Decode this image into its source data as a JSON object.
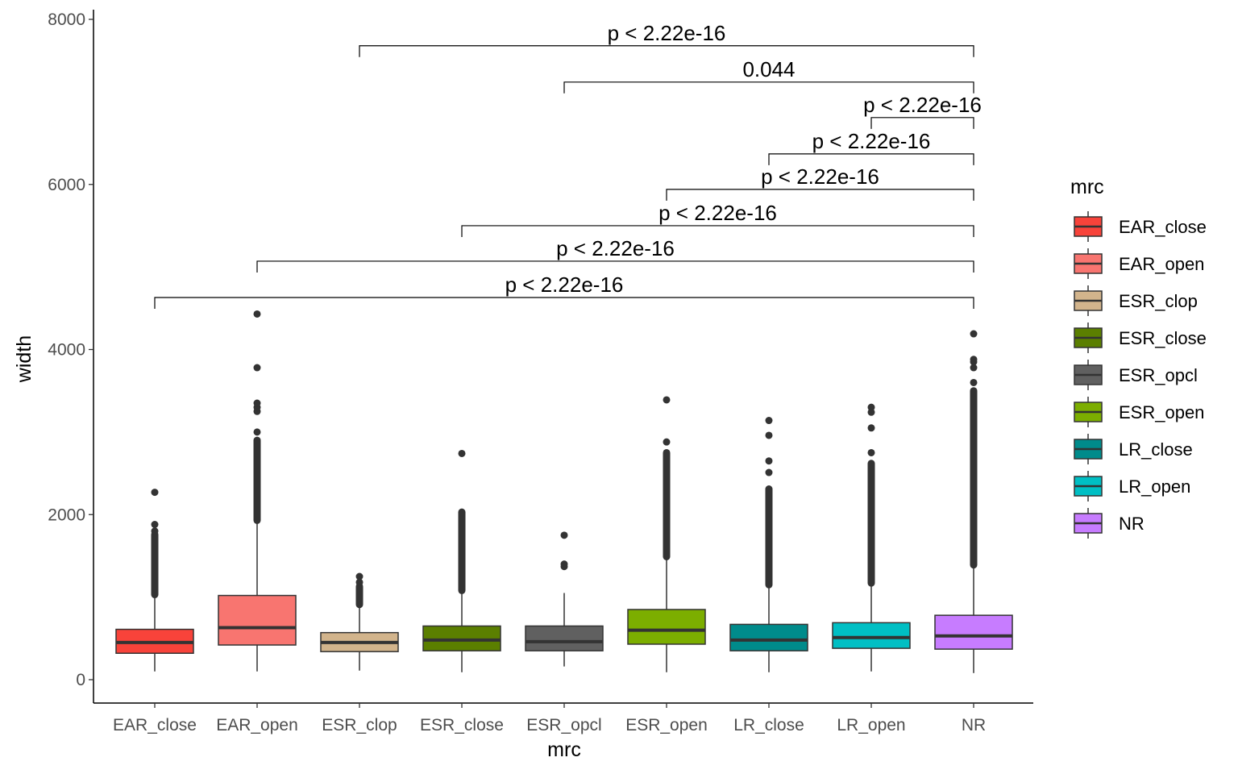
{
  "chart_data": {
    "type": "boxplot",
    "xlabel": "mrc",
    "ylabel": "width",
    "ylim": [
      -300,
      8100
    ],
    "yticks": [
      0,
      2000,
      4000,
      6000,
      8000
    ],
    "ytick_labels": [
      "0",
      "2000",
      "4000",
      "6000",
      "8000"
    ],
    "categories": [
      "EAR_close",
      "EAR_open",
      "ESR_clop",
      "ESR_close",
      "ESR_opcl",
      "ESR_open",
      "LR_close",
      "LR_open",
      "NR"
    ],
    "colors": [
      "#F8433A",
      "#F87570",
      "#D2B48C",
      "#5B7F00",
      "#606060",
      "#7CAE00",
      "#008B8B",
      "#00BFC4",
      "#C77CFF"
    ],
    "boxes": [
      {
        "name": "EAR_close",
        "whisker_low": 100,
        "q1": 320,
        "median": 450,
        "q3": 610,
        "whisker_high": 1020,
        "outlier_dense": [
          1030,
          1760
        ],
        "outliers": [
          1800,
          1880,
          2270
        ]
      },
      {
        "name": "EAR_open",
        "whisker_low": 100,
        "q1": 420,
        "median": 630,
        "q3": 1020,
        "whisker_high": 1920,
        "outlier_dense": [
          1930,
          2900
        ],
        "outliers": [
          3000,
          3250,
          3300,
          3350,
          3780,
          4430
        ]
      },
      {
        "name": "ESR_clop",
        "whisker_low": 110,
        "q1": 340,
        "median": 450,
        "q3": 570,
        "whisker_high": 900,
        "outlier_dense": [
          910,
          1130
        ],
        "outliers": [
          1180,
          1250
        ]
      },
      {
        "name": "ESR_close",
        "whisker_low": 90,
        "q1": 350,
        "median": 480,
        "q3": 650,
        "whisker_high": 1070,
        "outlier_dense": [
          1080,
          2030
        ],
        "outliers": [
          2740
        ]
      },
      {
        "name": "ESR_opcl",
        "whisker_low": 160,
        "q1": 350,
        "median": 460,
        "q3": 650,
        "whisker_high": 1050,
        "outlier_dense": [],
        "outliers": [
          1370,
          1400,
          1750
        ]
      },
      {
        "name": "ESR_open",
        "whisker_low": 90,
        "q1": 430,
        "median": 600,
        "q3": 850,
        "whisker_high": 1480,
        "outlier_dense": [
          1490,
          2750
        ],
        "outliers": [
          2880,
          3390
        ]
      },
      {
        "name": "LR_close",
        "whisker_low": 90,
        "q1": 350,
        "median": 480,
        "q3": 670,
        "whisker_high": 1140,
        "outlier_dense": [
          1150,
          2310
        ],
        "outliers": [
          2510,
          2650,
          2960,
          3140
        ]
      },
      {
        "name": "LR_open",
        "whisker_low": 100,
        "q1": 380,
        "median": 510,
        "q3": 690,
        "whisker_high": 1160,
        "outlier_dense": [
          1170,
          2620
        ],
        "outliers": [
          2750,
          3050,
          3240,
          3300
        ]
      },
      {
        "name": "NR",
        "whisker_low": 80,
        "q1": 370,
        "median": 530,
        "q3": 780,
        "whisker_high": 1380,
        "outlier_dense": [
          1390,
          3500
        ],
        "outliers": [
          3600,
          3780,
          3850,
          3880,
          4190
        ]
      }
    ],
    "comparisons": [
      {
        "from": "ESR_clop",
        "to": "NR",
        "y": 7680,
        "label": "p < 2.22e-16"
      },
      {
        "from": "ESR_opcl",
        "to": "NR",
        "y": 7240,
        "label": "0.044"
      },
      {
        "from": "LR_open",
        "to": "NR",
        "y": 6810,
        "label": "p < 2.22e-16"
      },
      {
        "from": "LR_close",
        "to": "NR",
        "y": 6370,
        "label": "p < 2.22e-16"
      },
      {
        "from": "ESR_open",
        "to": "NR",
        "y": 5940,
        "label": "p < 2.22e-16"
      },
      {
        "from": "ESR_close",
        "to": "NR",
        "y": 5500,
        "label": "p < 2.22e-16"
      },
      {
        "from": "EAR_open",
        "to": "NR",
        "y": 5070,
        "label": "p < 2.22e-16"
      },
      {
        "from": "EAR_close",
        "to": "NR",
        "y": 4630,
        "label": "p < 2.22e-16"
      }
    ],
    "legend": {
      "title": "mrc",
      "position": "right",
      "entries": [
        "EAR_close",
        "EAR_open",
        "ESR_clop",
        "ESR_close",
        "ESR_opcl",
        "ESR_open",
        "LR_close",
        "LR_open",
        "NR"
      ]
    }
  }
}
